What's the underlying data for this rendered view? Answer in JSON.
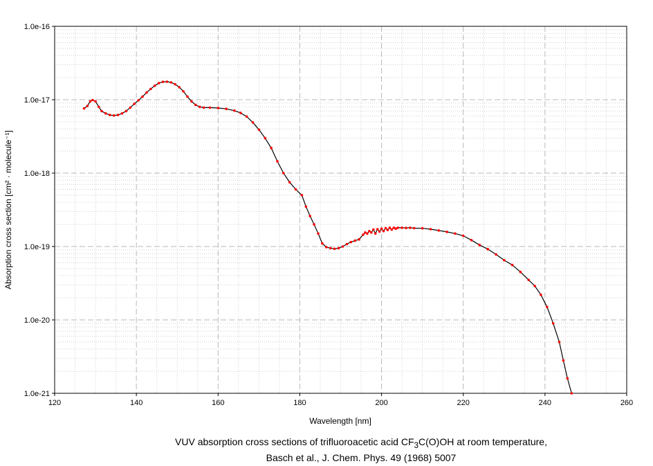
{
  "chart_data": {
    "type": "line",
    "xlabel": "Wavelength [nm]",
    "ylabel": "Absorption cross section [cm² · molecule⁻¹]",
    "xlim": [
      120,
      260
    ],
    "ylim": [
      1e-21,
      1e-16
    ],
    "yscale": "log",
    "grid": true,
    "xticks": [
      120,
      140,
      160,
      180,
      200,
      220,
      240,
      260
    ],
    "xtick_labels": [
      "120",
      "140",
      "160",
      "180",
      "200",
      "220",
      "240",
      "260"
    ],
    "yticks": [
      1e-21,
      1e-20,
      1e-19,
      1e-18,
      1e-17,
      1e-16
    ],
    "ytick_labels": [
      "1.0e-21",
      "1.0e-20",
      "1.0e-19",
      "1.0e-18",
      "1.0e-17",
      "1.0e-16"
    ],
    "line_color": "#000000",
    "marker_color": "#ff0000",
    "series": [
      {
        "x": [
          127.2,
          128.0,
          128.7,
          129.3,
          130.0,
          130.8,
          131.5,
          132.5,
          133.5,
          134.5,
          135.5,
          136.5,
          137.5,
          138.5,
          139.5,
          140.5,
          141.5,
          142.5,
          143.5,
          144.5,
          145.5,
          146.5,
          147.5,
          148.5,
          149.5,
          150.5,
          151.5,
          152.5,
          153.5,
          154.5,
          155.5,
          156.5,
          158.0,
          160.0,
          162.0,
          164.0,
          165.5,
          167.0,
          168.5,
          170.0,
          171.5,
          173.0,
          174.5,
          176.0,
          177.5,
          179.0,
          180.5,
          181.5,
          182.5,
          183.5,
          184.5,
          185.5,
          186.5,
          187.5,
          188.5,
          189.5,
          190.5,
          191.5,
          192.5,
          193.5,
          194.5,
          195.5,
          196.0,
          196.5,
          197.0,
          197.5,
          198.0,
          198.5,
          199.0,
          199.5,
          200.0,
          200.5,
          201.0,
          201.5,
          202.0,
          202.5,
          203.0,
          203.5,
          204.0,
          205.0,
          206.0,
          207.0,
          208.0,
          210.0,
          212.0,
          214.0,
          216.0,
          218.0,
          220.0,
          222.0,
          224.0,
          226.0,
          228.0,
          230.0,
          232.0,
          234.0,
          236.0,
          237.5,
          239.0,
          240.5,
          242.0,
          243.5,
          244.5,
          245.5,
          246.5
        ],
        "y": [
          7.6e-18,
          8.2e-18,
          9.5e-18,
          9.9e-18,
          9.5e-18,
          8e-18,
          7e-18,
          6.5e-18,
          6.2e-18,
          6.1e-18,
          6.2e-18,
          6.5e-18,
          7e-18,
          7.8e-18,
          8.8e-18,
          9.8e-18,
          1.1e-17,
          1.25e-17,
          1.4e-17,
          1.55e-17,
          1.68e-17,
          1.75e-17,
          1.76e-17,
          1.72e-17,
          1.62e-17,
          1.48e-17,
          1.3e-17,
          1.1e-17,
          9.5e-18,
          8.5e-18,
          8e-18,
          7.8e-18,
          7.8e-18,
          7.7e-18,
          7.5e-18,
          7.1e-18,
          6.6e-18,
          5.9e-18,
          4.9e-18,
          3.9e-18,
          3e-18,
          2.2e-18,
          1.45e-18,
          1e-18,
          7.5e-19,
          6e-19,
          5e-19,
          3.5e-19,
          2.6e-19,
          2e-19,
          1.5e-19,
          1.1e-19,
          9.8e-20,
          9.5e-20,
          9.3e-20,
          9.5e-20,
          1e-19,
          1.08e-19,
          1.15e-19,
          1.2e-19,
          1.25e-19,
          1.45e-19,
          1.55e-19,
          1.5e-19,
          1.62e-19,
          1.55e-19,
          1.7e-19,
          1.5e-19,
          1.72e-19,
          1.6e-19,
          1.75e-19,
          1.62e-19,
          1.78e-19,
          1.68e-19,
          1.8e-19,
          1.7e-19,
          1.8e-19,
          1.75e-19,
          1.8e-19,
          1.8e-19,
          1.79e-19,
          1.8e-19,
          1.78e-19,
          1.77e-19,
          1.72e-19,
          1.65e-19,
          1.58e-19,
          1.5e-19,
          1.4e-19,
          1.22e-19,
          1.05e-19,
          9.2e-20,
          7.8e-20,
          6.5e-20,
          5.6e-20,
          4.5e-20,
          3.5e-20,
          2.9e-20,
          2.2e-20,
          1.5e-20,
          9e-21,
          5e-21,
          2.8e-21,
          1.6e-21,
          1e-21
        ]
      }
    ]
  },
  "caption": {
    "line1_prefix": "VUV absorption cross sections of trifluoroacetic acid CF",
    "line1_sub": "3",
    "line1_suffix": "C(O)OH at room temperature,",
    "line2": "Basch et al., J. Chem. Phys. 49 (1968) 5007"
  }
}
